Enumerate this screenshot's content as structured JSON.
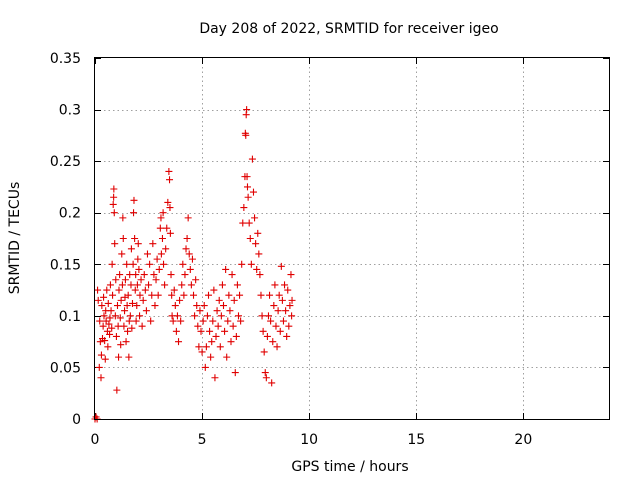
{
  "chart_data": {
    "type": "scatter",
    "title": "Day 208 of 2022, SRMTID for receiver igeo",
    "xlabel": "GPS time / hours",
    "ylabel": "SRMTID / TECUs",
    "xlim": [
      0,
      24
    ],
    "ylim": [
      0,
      0.35
    ],
    "x_ticks": [
      0,
      5,
      10,
      15,
      20
    ],
    "x_tick_labels": [
      "0",
      "5",
      "10",
      "15",
      "20"
    ],
    "y_ticks": [
      0,
      0.05,
      0.1,
      0.15,
      0.2,
      0.25,
      0.3,
      0.35
    ],
    "y_tick_labels": [
      "0",
      "0.05",
      "0.1",
      "0.15",
      "0.2",
      "0.25",
      "0.3",
      "0.35"
    ],
    "grid": true,
    "marker": "plus",
    "color": "#e00000",
    "points": [
      [
        0.0,
        0.0
      ],
      [
        0.05,
        0.002
      ],
      [
        0.1,
        0.0
      ],
      [
        0.12,
        0.125
      ],
      [
        0.15,
        0.115
      ],
      [
        0.2,
        0.05
      ],
      [
        0.22,
        0.095
      ],
      [
        0.25,
        0.075
      ],
      [
        0.28,
        0.04
      ],
      [
        0.3,
        0.062
      ],
      [
        0.32,
        0.11
      ],
      [
        0.35,
        0.078
      ],
      [
        0.38,
        0.09
      ],
      [
        0.4,
        0.118
      ],
      [
        0.42,
        0.1
      ],
      [
        0.45,
        0.076
      ],
      [
        0.48,
        0.058
      ],
      [
        0.5,
        0.105
      ],
      [
        0.52,
        0.095
      ],
      [
        0.55,
        0.125
      ],
      [
        0.58,
        0.085
      ],
      [
        0.6,
        0.07
      ],
      [
        0.62,
        0.112
      ],
      [
        0.65,
        0.092
      ],
      [
        0.68,
        0.082
      ],
      [
        0.7,
        0.098
      ],
      [
        0.72,
        0.13
      ],
      [
        0.75,
        0.105
      ],
      [
        0.78,
        0.088
      ],
      [
        0.8,
        0.15
      ],
      [
        0.82,
        0.12
      ],
      [
        0.85,
        0.208
      ],
      [
        0.87,
        0.215
      ],
      [
        0.88,
        0.223
      ],
      [
        0.9,
        0.2
      ],
      [
        0.92,
        0.17
      ],
      [
        0.95,
        0.1
      ],
      [
        0.97,
        0.135
      ],
      [
        1.0,
        0.08
      ],
      [
        1.02,
        0.028
      ],
      [
        1.05,
        0.11
      ],
      [
        1.08,
        0.09
      ],
      [
        1.1,
        0.06
      ],
      [
        1.12,
        0.125
      ],
      [
        1.15,
        0.14
      ],
      [
        1.18,
        0.098
      ],
      [
        1.2,
        0.072
      ],
      [
        1.22,
        0.115
      ],
      [
        1.25,
        0.16
      ],
      [
        1.28,
        0.13
      ],
      [
        1.3,
        0.195
      ],
      [
        1.32,
        0.175
      ],
      [
        1.35,
        0.09
      ],
      [
        1.38,
        0.105
      ],
      [
        1.4,
        0.118
      ],
      [
        1.42,
        0.135
      ],
      [
        1.45,
        0.075
      ],
      [
        1.48,
        0.15
      ],
      [
        1.5,
        0.11
      ],
      [
        1.52,
        0.085
      ],
      [
        1.55,
        0.12
      ],
      [
        1.58,
        0.06
      ],
      [
        1.6,
        0.095
      ],
      [
        1.62,
        0.14
      ],
      [
        1.65,
        0.1
      ],
      [
        1.68,
        0.13
      ],
      [
        1.7,
        0.165
      ],
      [
        1.72,
        0.088
      ],
      [
        1.75,
        0.112
      ],
      [
        1.78,
        0.15
      ],
      [
        1.8,
        0.2
      ],
      [
        1.82,
        0.212
      ],
      [
        1.85,
        0.175
      ],
      [
        1.88,
        0.125
      ],
      [
        1.9,
        0.14
      ],
      [
        1.92,
        0.095
      ],
      [
        1.95,
        0.11
      ],
      [
        1.98,
        0.13
      ],
      [
        2.0,
        0.155
      ],
      [
        2.02,
        0.17
      ],
      [
        2.05,
        0.145
      ],
      [
        2.08,
        0.1
      ],
      [
        2.1,
        0.12
      ],
      [
        2.15,
        0.135
      ],
      [
        2.2,
        0.09
      ],
      [
        2.25,
        0.115
      ],
      [
        2.3,
        0.14
      ],
      [
        2.35,
        0.125
      ],
      [
        2.4,
        0.105
      ],
      [
        2.45,
        0.16
      ],
      [
        2.5,
        0.13
      ],
      [
        2.55,
        0.15
      ],
      [
        2.6,
        0.095
      ],
      [
        2.65,
        0.12
      ],
      [
        2.7,
        0.17
      ],
      [
        2.75,
        0.14
      ],
      [
        2.8,
        0.11
      ],
      [
        2.85,
        0.135
      ],
      [
        2.9,
        0.155
      ],
      [
        2.95,
        0.12
      ],
      [
        3.0,
        0.145
      ],
      [
        3.05,
        0.185
      ],
      [
        3.08,
        0.195
      ],
      [
        3.1,
        0.16
      ],
      [
        3.15,
        0.175
      ],
      [
        3.18,
        0.2
      ],
      [
        3.2,
        0.15
      ],
      [
        3.25,
        0.13
      ],
      [
        3.3,
        0.165
      ],
      [
        3.35,
        0.185
      ],
      [
        3.4,
        0.21
      ],
      [
        3.45,
        0.24
      ],
      [
        3.48,
        0.232
      ],
      [
        3.5,
        0.205
      ],
      [
        3.52,
        0.18
      ],
      [
        3.55,
        0.14
      ],
      [
        3.58,
        0.12
      ],
      [
        3.6,
        0.1
      ],
      [
        3.65,
        0.095
      ],
      [
        3.7,
        0.125
      ],
      [
        3.75,
        0.11
      ],
      [
        3.8,
        0.085
      ],
      [
        3.85,
        0.1
      ],
      [
        3.9,
        0.075
      ],
      [
        3.95,
        0.115
      ],
      [
        4.0,
        0.095
      ],
      [
        4.05,
        0.13
      ],
      [
        4.1,
        0.15
      ],
      [
        4.15,
        0.12
      ],
      [
        4.2,
        0.14
      ],
      [
        4.25,
        0.165
      ],
      [
        4.3,
        0.175
      ],
      [
        4.35,
        0.195
      ],
      [
        4.4,
        0.16
      ],
      [
        4.45,
        0.145
      ],
      [
        4.5,
        0.13
      ],
      [
        4.55,
        0.155
      ],
      [
        4.6,
        0.12
      ],
      [
        4.65,
        0.1
      ],
      [
        4.7,
        0.135
      ],
      [
        4.75,
        0.11
      ],
      [
        4.8,
        0.09
      ],
      [
        4.85,
        0.07
      ],
      [
        4.9,
        0.105
      ],
      [
        4.95,
        0.085
      ],
      [
        5.0,
        0.065
      ],
      [
        5.05,
        0.095
      ],
      [
        5.1,
        0.11
      ],
      [
        5.15,
        0.05
      ],
      [
        5.2,
        0.07
      ],
      [
        5.25,
        0.1
      ],
      [
        5.3,
        0.12
      ],
      [
        5.35,
        0.085
      ],
      [
        5.4,
        0.06
      ],
      [
        5.45,
        0.075
      ],
      [
        5.5,
        0.095
      ],
      [
        5.55,
        0.125
      ],
      [
        5.6,
        0.04
      ],
      [
        5.65,
        0.08
      ],
      [
        5.7,
        0.105
      ],
      [
        5.75,
        0.09
      ],
      [
        5.8,
        0.115
      ],
      [
        5.85,
        0.07
      ],
      [
        5.9,
        0.1
      ],
      [
        5.95,
        0.13
      ],
      [
        6.0,
        0.11
      ],
      [
        6.05,
        0.085
      ],
      [
        6.1,
        0.145
      ],
      [
        6.15,
        0.06
      ],
      [
        6.2,
        0.095
      ],
      [
        6.25,
        0.12
      ],
      [
        6.3,
        0.105
      ],
      [
        6.35,
        0.075
      ],
      [
        6.4,
        0.14
      ],
      [
        6.45,
        0.09
      ],
      [
        6.5,
        0.115
      ],
      [
        6.55,
        0.045
      ],
      [
        6.6,
        0.08
      ],
      [
        6.65,
        0.13
      ],
      [
        6.7,
        0.1
      ],
      [
        6.75,
        0.12
      ],
      [
        6.8,
        0.095
      ],
      [
        6.85,
        0.15
      ],
      [
        6.9,
        0.19
      ],
      [
        6.95,
        0.205
      ],
      [
        7.0,
        0.235
      ],
      [
        7.02,
        0.277
      ],
      [
        7.04,
        0.275
      ],
      [
        7.06,
        0.295
      ],
      [
        7.08,
        0.3
      ],
      [
        7.1,
        0.235
      ],
      [
        7.12,
        0.225
      ],
      [
        7.15,
        0.215
      ],
      [
        7.2,
        0.19
      ],
      [
        7.25,
        0.175
      ],
      [
        7.3,
        0.15
      ],
      [
        7.35,
        0.252
      ],
      [
        7.4,
        0.22
      ],
      [
        7.45,
        0.195
      ],
      [
        7.5,
        0.17
      ],
      [
        7.55,
        0.145
      ],
      [
        7.6,
        0.18
      ],
      [
        7.65,
        0.16
      ],
      [
        7.7,
        0.14
      ],
      [
        7.75,
        0.12
      ],
      [
        7.8,
        0.1
      ],
      [
        7.85,
        0.085
      ],
      [
        7.9,
        0.065
      ],
      [
        7.95,
        0.045
      ],
      [
        8.0,
        0.04
      ],
      [
        8.05,
        0.08
      ],
      [
        8.1,
        0.1
      ],
      [
        8.15,
        0.12
      ],
      [
        8.2,
        0.095
      ],
      [
        8.25,
        0.035
      ],
      [
        8.3,
        0.075
      ],
      [
        8.35,
        0.11
      ],
      [
        8.4,
        0.13
      ],
      [
        8.45,
        0.09
      ],
      [
        8.5,
        0.07
      ],
      [
        8.55,
        0.105
      ],
      [
        8.6,
        0.12
      ],
      [
        8.65,
        0.085
      ],
      [
        8.7,
        0.148
      ],
      [
        8.75,
        0.115
      ],
      [
        8.8,
        0.095
      ],
      [
        8.85,
        0.13
      ],
      [
        8.9,
        0.105
      ],
      [
        8.95,
        0.08
      ],
      [
        9.0,
        0.125
      ],
      [
        9.05,
        0.09
      ],
      [
        9.1,
        0.11
      ],
      [
        9.15,
        0.14
      ],
      [
        9.18,
        0.1
      ],
      [
        9.2,
        0.115
      ]
    ]
  }
}
